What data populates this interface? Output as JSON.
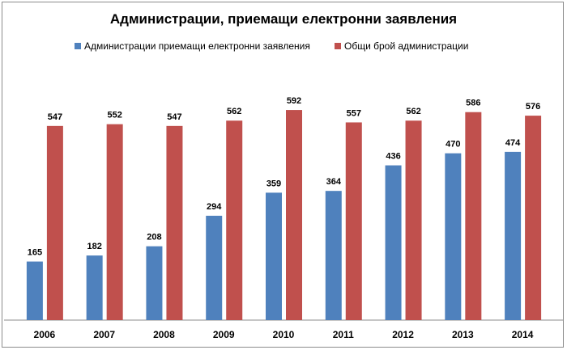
{
  "chart_data": {
    "type": "bar",
    "title": "Администрации, приемащи електронни заявления",
    "xlabel": "",
    "ylabel": "",
    "ylim": [
      0,
      640
    ],
    "grid": false,
    "legend_position": "top",
    "categories": [
      "2006",
      "2007",
      "2008",
      "2009",
      "2010",
      "2011",
      "2012",
      "2013",
      "2014"
    ],
    "series": [
      {
        "name": "Администрации приемащи електронни заявления",
        "color": "#4f81bd",
        "values": [
          165,
          182,
          208,
          294,
          359,
          364,
          436,
          470,
          474
        ]
      },
      {
        "name": "Общи брой администрации",
        "color": "#c0504d",
        "values": [
          547,
          552,
          547,
          562,
          592,
          557,
          562,
          586,
          576
        ]
      }
    ]
  }
}
